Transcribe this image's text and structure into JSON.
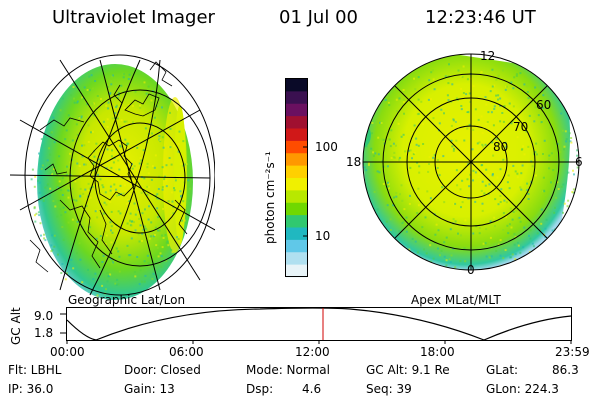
{
  "header": {
    "instrument": "Ultraviolet Imager",
    "date": "01 Jul 00",
    "time": "12:23:46 UT"
  },
  "left_panel": {
    "caption": "Geographic Lat/Lon"
  },
  "right_panel": {
    "caption": "Apex MLat/MLT",
    "mlt_labels": {
      "top": "12",
      "left": "18",
      "right": "6",
      "bottom": "0"
    },
    "lat_labels": [
      "60",
      "70",
      "80"
    ]
  },
  "colorbar": {
    "unit_label": "photon cm⁻²s⁻¹",
    "scale": "log",
    "ticks": [
      "100",
      "10"
    ],
    "colors": [
      "#0a0a28",
      "#3a1050",
      "#6a1060",
      "#a01030",
      "#d01818",
      "#ff4c00",
      "#ff9800",
      "#ffd000",
      "#f0f000",
      "#b8e800",
      "#70d800",
      "#30c870",
      "#20b8c0",
      "#60c8e8",
      "#b0e0f0",
      "#e8f4f8"
    ]
  },
  "altitude_plot": {
    "y_label": "GC Alt",
    "y_ticks": [
      "9.0",
      "1.8"
    ],
    "x_ticks": [
      "00:00",
      "06:00",
      "12:00",
      "18:00",
      "23:59"
    ],
    "marker_time": "12:23"
  },
  "status": {
    "flt": "Flt: LBHL",
    "ip": "IP: 36.0",
    "door": "Door: Closed",
    "gain": "Gain: 13",
    "mode": "Mode: Normal",
    "dsp_label": "Dsp:",
    "dsp_value": "4.6",
    "gcalt": "GC Alt: 9.1 Re",
    "seq": "Seq: 39",
    "glat_label": "GLat:",
    "glat_value": "86.3",
    "glon": "GLon: 224.3"
  }
}
